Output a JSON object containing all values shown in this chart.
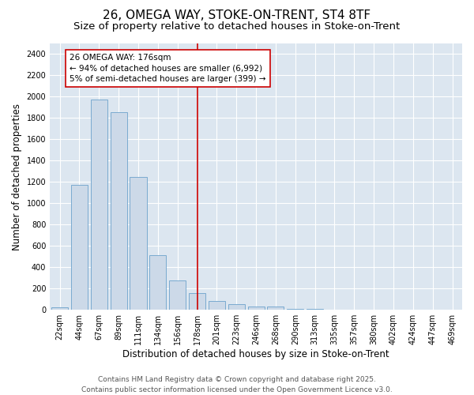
{
  "title_line1": "26, OMEGA WAY, STOKE-ON-TRENT, ST4 8TF",
  "title_line2": "Size of property relative to detached houses in Stoke-on-Trent",
  "xlabel": "Distribution of detached houses by size in Stoke-on-Trent",
  "ylabel": "Number of detached properties",
  "categories": [
    "22sqm",
    "44sqm",
    "67sqm",
    "89sqm",
    "111sqm",
    "134sqm",
    "156sqm",
    "178sqm",
    "201sqm",
    "223sqm",
    "246sqm",
    "268sqm",
    "290sqm",
    "313sqm",
    "335sqm",
    "357sqm",
    "380sqm",
    "402sqm",
    "424sqm",
    "447sqm",
    "469sqm"
  ],
  "values": [
    25,
    1175,
    1975,
    1855,
    1245,
    515,
    275,
    155,
    85,
    50,
    30,
    30,
    10,
    8,
    5,
    5,
    3,
    3,
    2,
    2,
    2
  ],
  "bar_color": "#ccd9e8",
  "bar_edge_color": "#7aaad0",
  "reference_line_x": 7,
  "reference_line_color": "#cc0000",
  "annotation_text": "26 OMEGA WAY: 176sqm\n← 94% of detached houses are smaller (6,992)\n5% of semi-detached houses are larger (399) →",
  "ylim": [
    0,
    2500
  ],
  "yticks": [
    0,
    200,
    400,
    600,
    800,
    1000,
    1200,
    1400,
    1600,
    1800,
    2000,
    2200,
    2400
  ],
  "fig_background_color": "#ffffff",
  "plot_background": "#dce6f0",
  "grid_color": "#ffffff",
  "footer_line1": "Contains HM Land Registry data © Crown copyright and database right 2025.",
  "footer_line2": "Contains public sector information licensed under the Open Government Licence v3.0.",
  "title_fontsize": 11,
  "subtitle_fontsize": 9.5,
  "tick_fontsize": 7,
  "label_fontsize": 8.5,
  "annotation_fontsize": 7.5,
  "footer_fontsize": 6.5
}
